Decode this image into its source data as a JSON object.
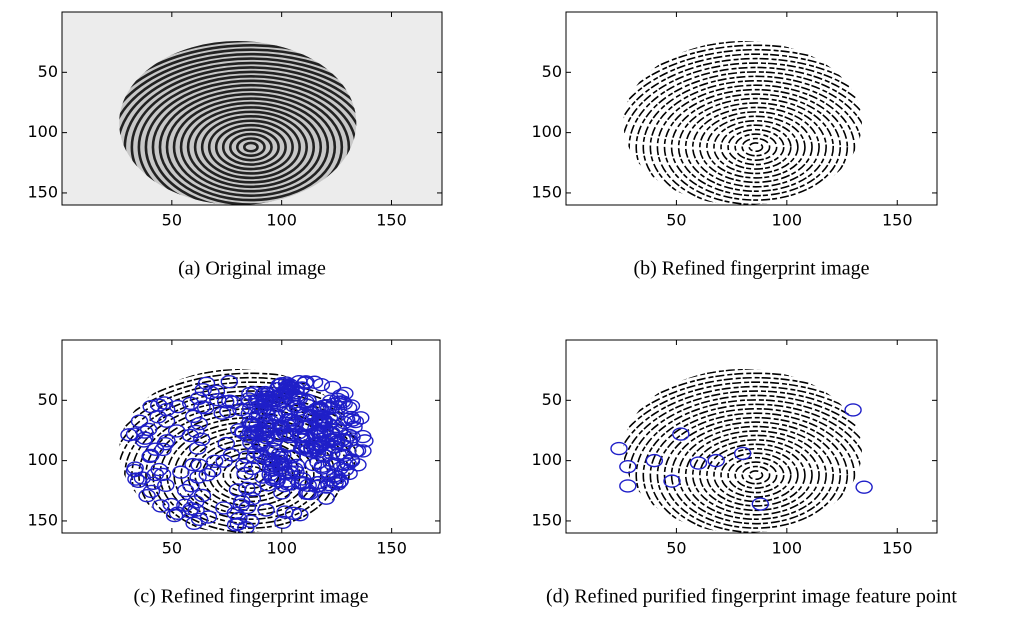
{
  "chart_data": [
    {
      "type": "image",
      "caption": "(a) Original image",
      "xlim": [
        0,
        173
      ],
      "ylim": [
        0,
        160
      ],
      "xticks": [
        50,
        100,
        150
      ],
      "yticks": [
        50,
        100,
        150
      ],
      "style": "original"
    },
    {
      "type": "image",
      "caption": "(b) Refined fingerprint image",
      "xlim": [
        0,
        168
      ],
      "ylim": [
        0,
        160
      ],
      "xticks": [
        50,
        100,
        150
      ],
      "yticks": [
        50,
        100,
        150
      ],
      "style": "refined"
    },
    {
      "type": "image",
      "caption": "(c) Refined fingerprint image",
      "xlim": [
        0,
        172
      ],
      "ylim": [
        0,
        160
      ],
      "xticks": [
        50,
        100,
        150
      ],
      "yticks": [
        50,
        100,
        150
      ],
      "style": "minutiae-all",
      "marker_color": "#1f1fc8"
    },
    {
      "type": "image",
      "caption": "(d) Refined purified fingerprint image feature point",
      "xlim": [
        0,
        168
      ],
      "ylim": [
        0,
        160
      ],
      "xticks": [
        50,
        100,
        150
      ],
      "yticks": [
        50,
        100,
        150
      ],
      "style": "refined",
      "marker_color": "#1f1fc8",
      "points": {
        "x": [
          130,
          24,
          52,
          28,
          40,
          60,
          68,
          80,
          28,
          88,
          135,
          48
        ],
        "y": [
          58,
          90,
          78,
          105,
          100,
          102,
          100,
          94,
          121,
          136,
          122,
          117
        ]
      }
    }
  ]
}
